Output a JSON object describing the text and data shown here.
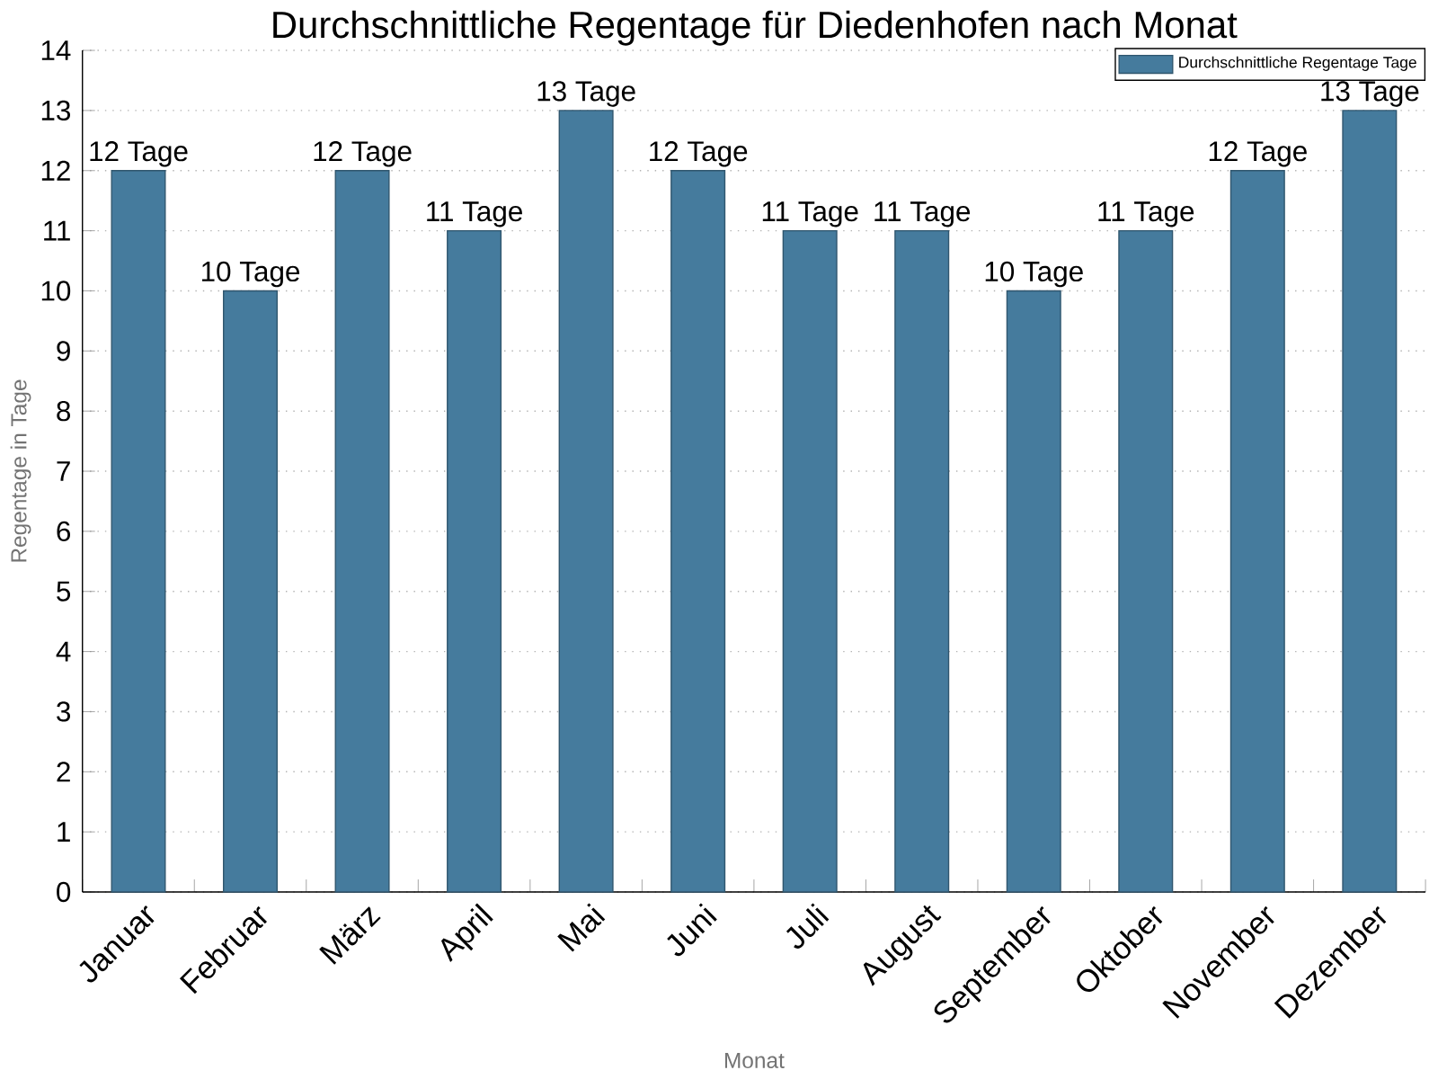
{
  "chart_data": {
    "type": "bar",
    "title": "Durchschnittliche Regentage für Diedenhofen nach Monat",
    "xlabel": "Monat",
    "ylabel": "Regentage in Tage",
    "categories": [
      "Januar",
      "Februar",
      "März",
      "April",
      "Mai",
      "Juni",
      "Juli",
      "August",
      "September",
      "Oktober",
      "November",
      "Dezember"
    ],
    "series": [
      {
        "name": "Durchschnittliche Regentage Tage",
        "color": "#457b9d",
        "values": [
          12,
          10,
          12,
          11,
          13,
          12,
          11,
          11,
          10,
          11,
          12,
          13
        ],
        "value_labels": [
          "12 Tage",
          "10 Tage",
          "12 Tage",
          "11 Tage",
          "13 Tage",
          "12 Tage",
          "11 Tage",
          "11 Tage",
          "10 Tage",
          "11 Tage",
          "12 Tage",
          "13 Tage"
        ]
      }
    ],
    "ylim": [
      0,
      14
    ],
    "yticks": [
      0,
      1,
      2,
      3,
      4,
      5,
      6,
      7,
      8,
      9,
      10,
      11,
      12,
      13,
      14
    ],
    "grid": "y",
    "legend": "top right"
  }
}
